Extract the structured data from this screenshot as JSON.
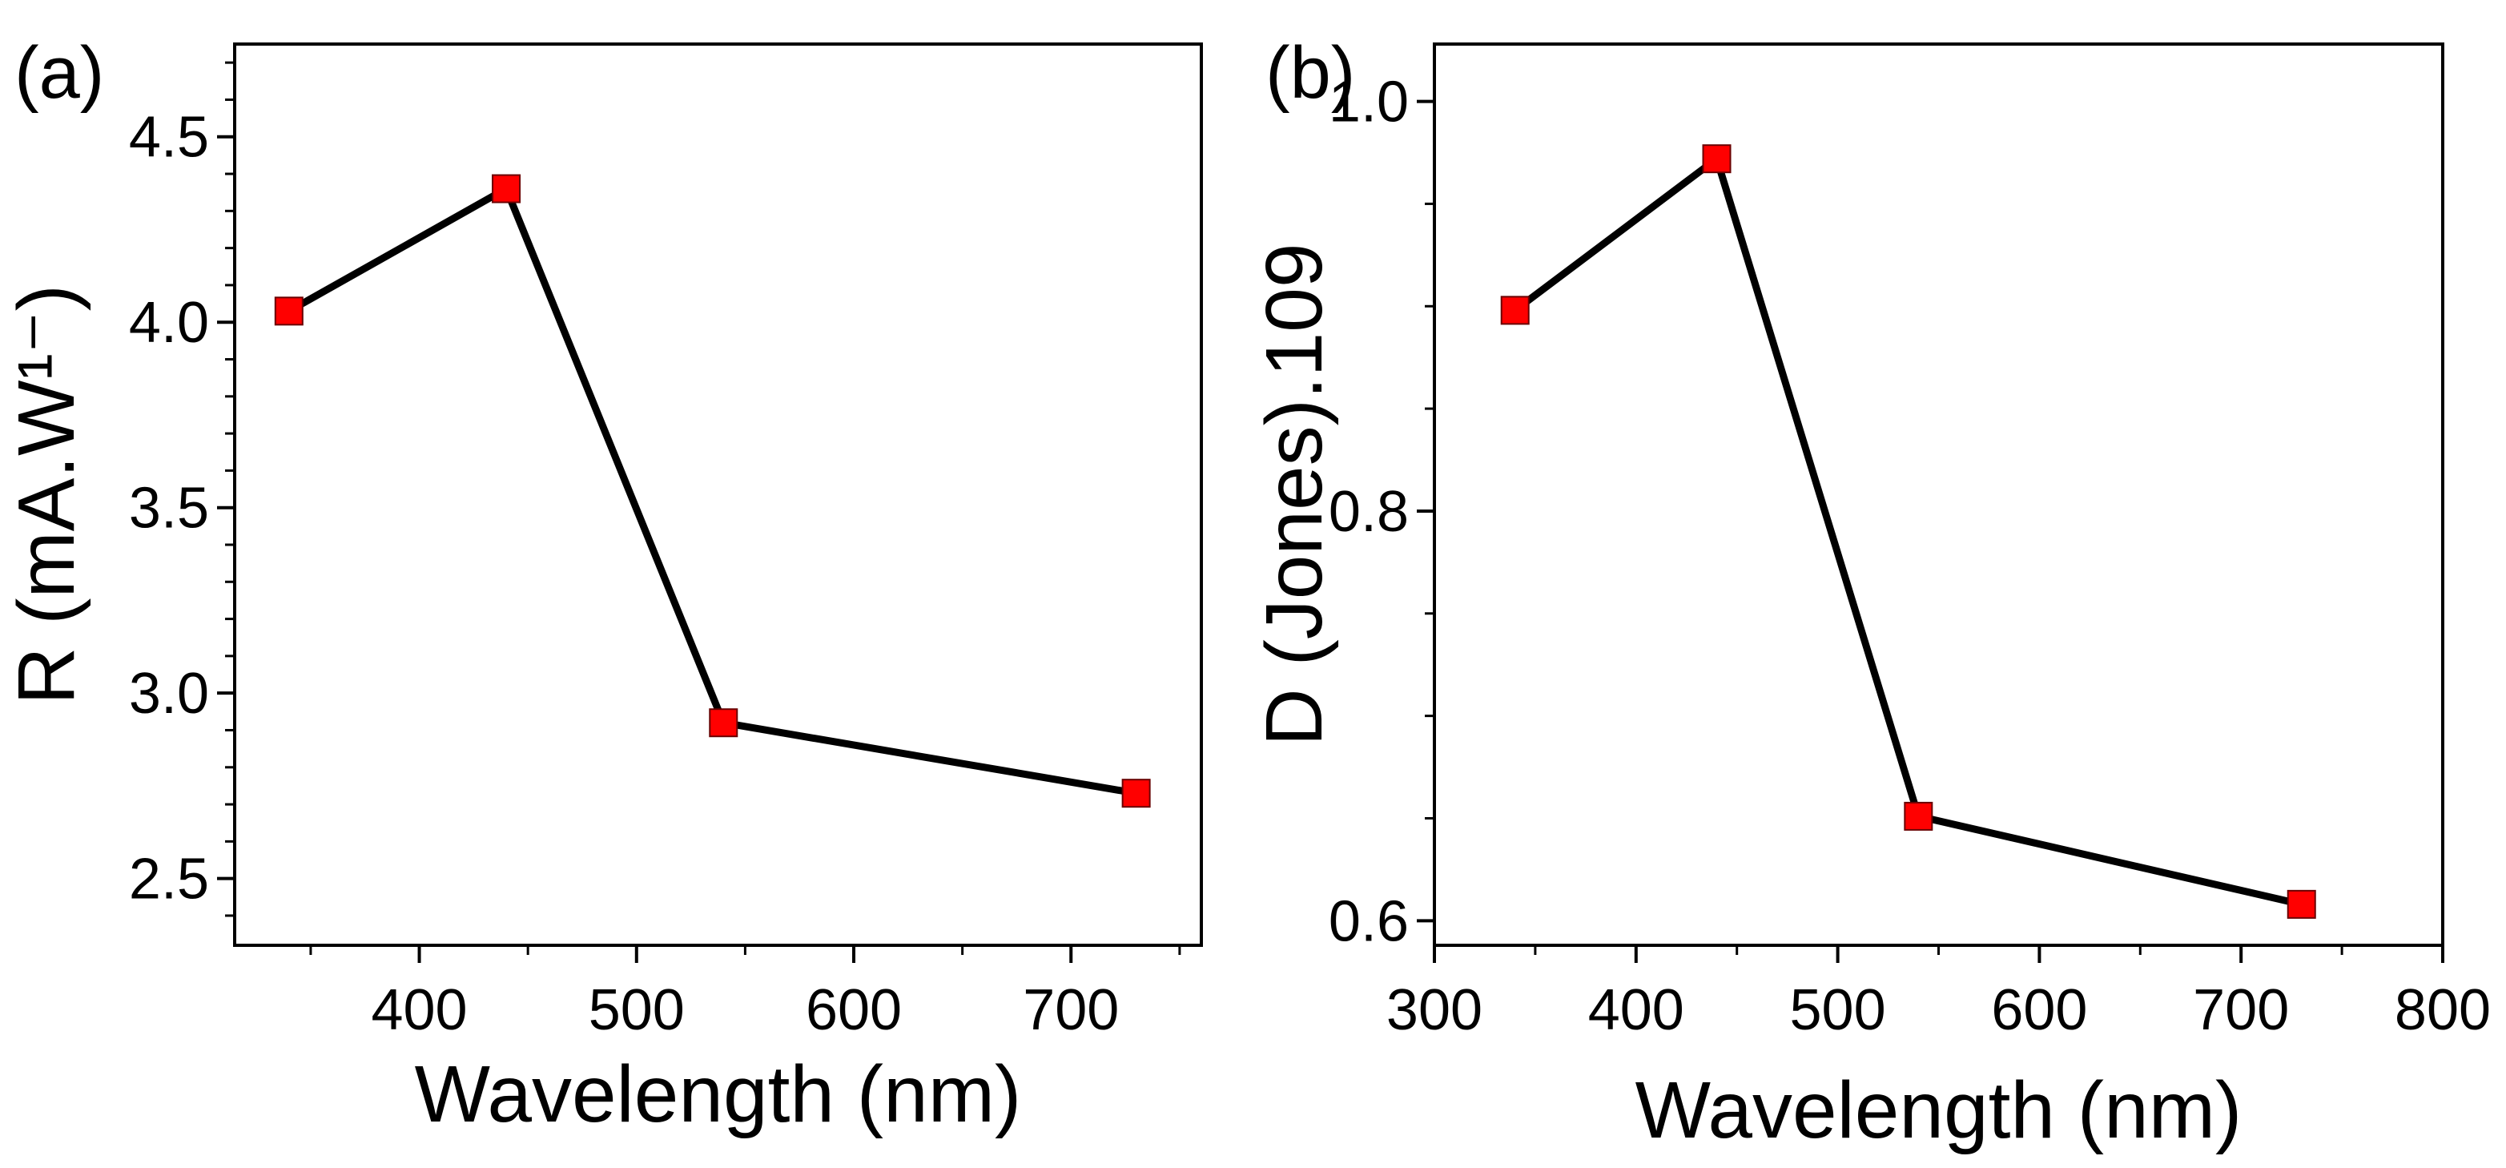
{
  "chart_data": [
    {
      "panel_label": "(a)",
      "type": "line",
      "xlabel": "Wavelength (nm)",
      "ylabel": "R (mA.W¹⁻)",
      "xlim": [
        315,
        760
      ],
      "ylim": [
        2.32,
        4.75
      ],
      "xticks": [
        400,
        500,
        600,
        700
      ],
      "xtick_labels": [
        "400",
        "500",
        "600",
        "700"
      ],
      "yticks": [
        2.5,
        3.0,
        3.5,
        4.0,
        4.5
      ],
      "ytick_labels": [
        "2.5",
        "3.0",
        "3.5",
        "4.0",
        "4.5"
      ],
      "series": [
        {
          "x": [
            340,
            440,
            540,
            730
          ],
          "y": [
            4.03,
            4.36,
            2.92,
            2.73
          ]
        }
      ],
      "marker": "square",
      "marker_color": "#ff0000",
      "line_color": "#000000",
      "grid": false
    },
    {
      "panel_label": "(b)",
      "type": "line",
      "xlabel": "Wavelength (nm)",
      "ylabel": "D (Jones).109",
      "xlim": [
        300,
        800
      ],
      "ylim": [
        0.588,
        1.028
      ],
      "xticks": [
        300,
        400,
        500,
        600,
        700,
        800
      ],
      "xtick_labels": [
        "300",
        "400",
        "500",
        "600",
        "700",
        "800"
      ],
      "yticks": [
        0.6,
        0.8,
        1.0
      ],
      "ytick_labels": [
        "0.6",
        "0.8",
        "1.0"
      ],
      "series": [
        {
          "x": [
            340,
            440,
            540,
            730
          ],
          "y": [
            0.898,
            0.972,
            0.651,
            0.608
          ]
        }
      ],
      "marker": "square",
      "marker_color": "#ff0000",
      "line_color": "#000000",
      "grid": false
    }
  ]
}
